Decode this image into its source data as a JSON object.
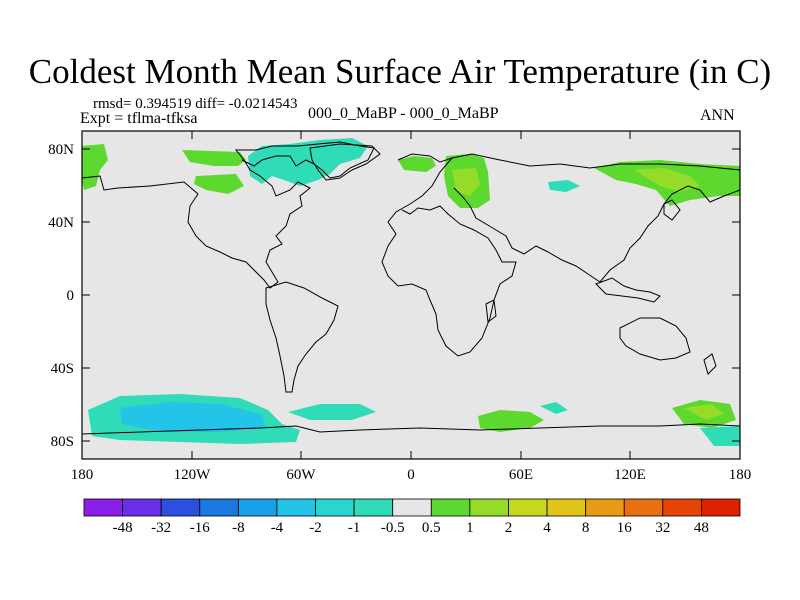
{
  "title": "Coldest Month Mean Surface Air Temperature (in C)",
  "rmsd_line": "rmsd= 0.394519 diff= -0.0214543",
  "expt_line": "Expt = tflma-tfksa",
  "comparison": "000_0_MaBP - 000_0_MaBP",
  "season": "ANN",
  "lat_labels": [
    "80N",
    "40N",
    "0",
    "40S",
    "80S"
  ],
  "lon_labels": [
    "180",
    "120W",
    "60W",
    "0",
    "60E",
    "120E",
    "180"
  ],
  "colorbar": {
    "labels": [
      "-48",
      "-32",
      "-16",
      "-8",
      "-4",
      "-2",
      "-1",
      "-0.5",
      "0.5",
      "1",
      "2",
      "4",
      "8",
      "16",
      "32",
      "48"
    ],
    "colors": [
      "#8b1fe8",
      "#6b2ee8",
      "#2b4fe0",
      "#1a78e0",
      "#1aa0e8",
      "#22c4e8",
      "#2ad4d0",
      "#30dcb8",
      "#e6e6e6",
      "#5cd82e",
      "#94dc28",
      "#c4d81e",
      "#e2c41a",
      "#e89c14",
      "#e8700e",
      "#e44408",
      "#dc2000"
    ]
  },
  "colors": {
    "ocean_land_neutral": "#e6e6e6",
    "frame": "#000000"
  }
}
